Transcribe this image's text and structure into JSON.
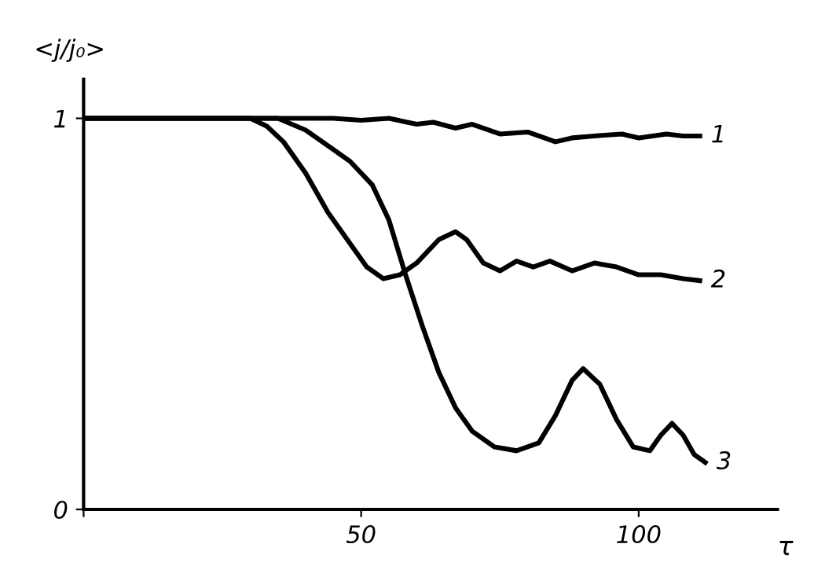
{
  "chart_data": {
    "type": "line",
    "ylabel": "<j/j₀>",
    "xlabel": "τ",
    "xlim": [
      0,
      125
    ],
    "ylim": [
      0,
      1.1
    ],
    "xticks": [
      {
        "value": 0,
        "label": null
      },
      50,
      100
    ],
    "yticks": [
      0,
      1
    ],
    "grid": false,
    "legend": false,
    "marker": "none",
    "line_style": "solid",
    "series": [
      {
        "name": "1",
        "color": "#000000",
        "x": [
          0,
          45,
          50,
          55,
          60,
          63,
          67,
          70,
          75,
          80,
          85,
          88,
          92,
          97,
          100,
          105,
          108,
          111
        ],
        "values": [
          1.0,
          1.0,
          0.995,
          1.0,
          0.985,
          0.99,
          0.975,
          0.985,
          0.96,
          0.965,
          0.94,
          0.95,
          0.955,
          0.96,
          0.95,
          0.96,
          0.955,
          0.955
        ]
      },
      {
        "name": "2",
        "color": "#000000",
        "x": [
          0,
          30,
          33,
          36,
          40,
          44,
          48,
          51,
          54,
          57,
          60,
          64,
          67,
          69,
          72,
          75,
          78,
          81,
          84,
          88,
          92,
          96,
          100,
          104,
          108,
          111
        ],
        "values": [
          1.0,
          1.0,
          0.98,
          0.94,
          0.86,
          0.76,
          0.68,
          0.62,
          0.59,
          0.6,
          0.63,
          0.69,
          0.71,
          0.69,
          0.63,
          0.61,
          0.635,
          0.62,
          0.635,
          0.61,
          0.63,
          0.62,
          0.6,
          0.6,
          0.59,
          0.585
        ]
      },
      {
        "name": "3",
        "color": "#000000",
        "x": [
          0,
          35,
          40,
          45,
          48,
          52,
          55,
          58,
          61,
          64,
          67,
          70,
          74,
          78,
          82,
          85,
          88,
          90,
          93,
          96,
          99,
          102,
          104,
          106,
          108,
          110,
          112
        ],
        "values": [
          1.0,
          1.0,
          0.97,
          0.92,
          0.89,
          0.83,
          0.74,
          0.6,
          0.47,
          0.35,
          0.26,
          0.2,
          0.16,
          0.15,
          0.17,
          0.24,
          0.33,
          0.36,
          0.32,
          0.23,
          0.16,
          0.15,
          0.19,
          0.22,
          0.19,
          0.14,
          0.12
        ]
      }
    ]
  }
}
